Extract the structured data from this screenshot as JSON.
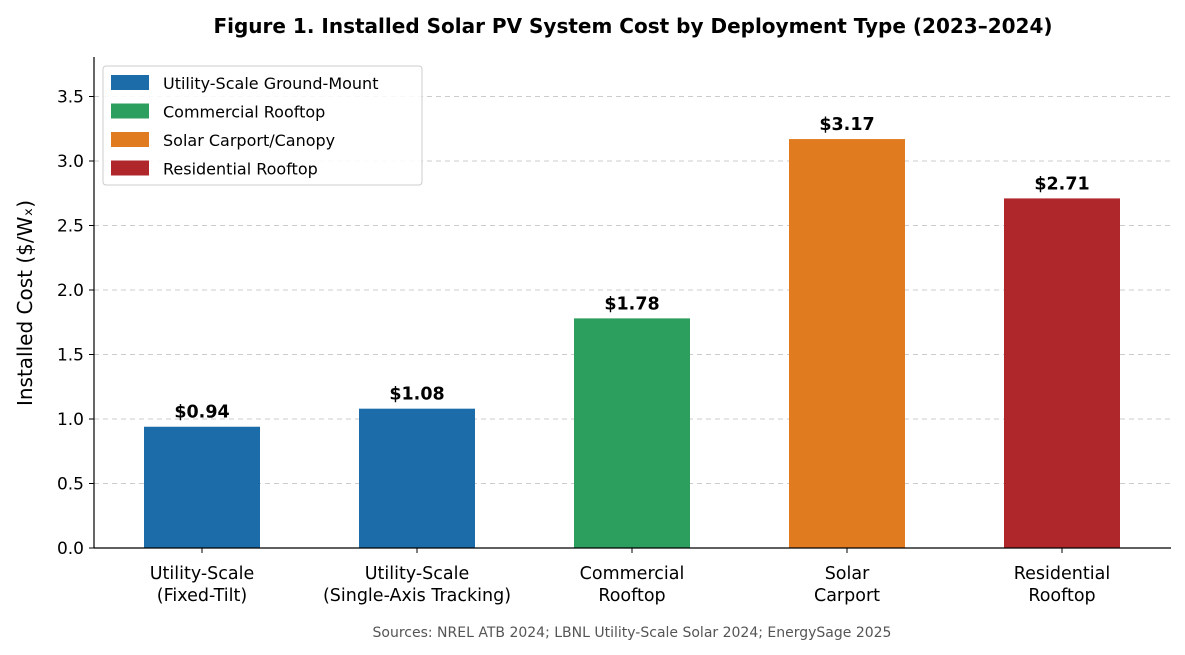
{
  "chart_data": {
    "type": "bar",
    "title": "Figure 1. Installed Solar PV System Cost by Deployment Type (2023–2024)",
    "xlabel": "",
    "ylabel": "Installed Cost ($/Wₓ)",
    "ylim": [
      0,
      3.8
    ],
    "yticks": [
      "0.0",
      "0.5",
      "1.0",
      "1.5",
      "2.0",
      "2.5",
      "3.0",
      "3.5"
    ],
    "grid": "horizontal dashed",
    "legend_position": "top-left",
    "categories": [
      [
        "Utility-Scale",
        "(Fixed-Tilt)"
      ],
      [
        "Utility-Scale",
        "(Single-Axis Tracking)"
      ],
      [
        "Commercial",
        "Rooftop"
      ],
      [
        "Solar",
        "Carport"
      ],
      [
        "Residential",
        "Rooftop"
      ]
    ],
    "values": [
      0.94,
      1.08,
      1.78,
      3.17,
      2.71
    ],
    "data_labels": [
      "$0.94",
      "$1.08",
      "$1.78",
      "$3.17",
      "$2.71"
    ],
    "bar_groups": [
      0,
      0,
      1,
      2,
      3
    ],
    "legend": [
      {
        "label": "Utility-Scale Ground-Mount",
        "color": "#1c6ca9"
      },
      {
        "label": "Commercial Rooftop",
        "color": "#2c9e5e"
      },
      {
        "label": "Solar Carport/Canopy",
        "color": "#e07b1f"
      },
      {
        "label": "Residential Rooftop",
        "color": "#af272b"
      }
    ],
    "source": "Sources: NREL ATB 2024; LBNL Utility-Scale Solar 2024; EnergySage 2025"
  }
}
